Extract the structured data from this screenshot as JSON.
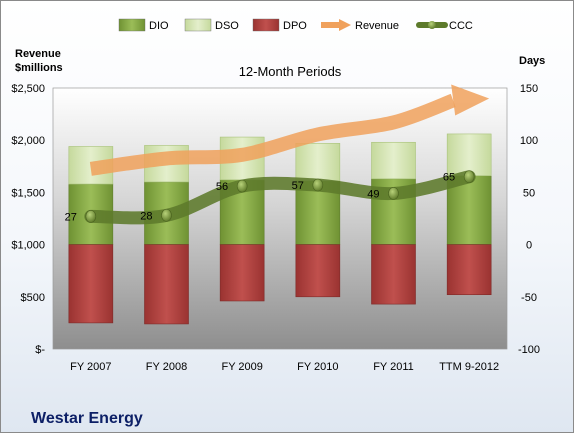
{
  "company": "Westar Energy",
  "chart_data": {
    "type": "bar",
    "title": "12-Month Periods",
    "categories": [
      "FY 2007",
      "FY 2008",
      "FY 2009",
      "FY 2010",
      "FY 2011",
      "TTM 9-2012"
    ],
    "series": [
      {
        "name": "DIO",
        "type": "stacked-bar",
        "axis": "right",
        "values": [
          58,
          60,
          62,
          61,
          63,
          66
        ],
        "color": "#8fb04e"
      },
      {
        "name": "DSO",
        "type": "stacked-bar",
        "axis": "right",
        "values": [
          36,
          35,
          41,
          36,
          35,
          40
        ],
        "color": "#d7e6b4"
      },
      {
        "name": "DPO",
        "type": "stacked-bar",
        "axis": "right",
        "values": [
          -75,
          -76,
          -54,
          -50,
          -57,
          -48
        ],
        "color": "#b94a48"
      },
      {
        "name": "Revenue",
        "type": "line",
        "axis": "left",
        "values": [
          1725,
          1825,
          1860,
          2055,
          2170,
          2400
        ],
        "color": "#f0a15c"
      },
      {
        "name": "CCC",
        "type": "line",
        "axis": "right",
        "values": [
          27,
          28,
          56,
          57,
          49,
          65
        ],
        "labels": [
          "27",
          "28",
          "56",
          "57",
          "49",
          "65"
        ],
        "color": "#5d7a2b"
      }
    ],
    "left_axis": {
      "label": "Revenue $millions",
      "ylim": [
        0,
        2500
      ],
      "ticks": [
        "$-",
        "$500",
        "$1,000",
        "$1,500",
        "$2,000",
        "$2,500"
      ]
    },
    "right_axis": {
      "label": "Days",
      "ylim": [
        -100,
        150
      ],
      "ticks": [
        "-100",
        "-50",
        "0",
        "50",
        "100",
        "150"
      ]
    },
    "grid": false,
    "legend_position": "top"
  }
}
